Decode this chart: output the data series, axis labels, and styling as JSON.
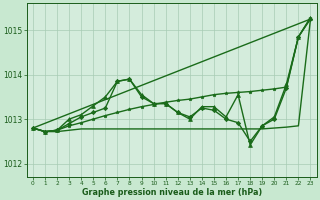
{
  "xlabel": "Graphe pression niveau de la mer (hPa)",
  "bg_color": "#c8e8d0",
  "plot_bg_color": "#d4ecdc",
  "grid_color": "#a8ccb4",
  "text_color": "#1a5c1a",
  "line_color": "#1a6b1a",
  "xlim": [
    -0.5,
    23.5
  ],
  "ylim": [
    1011.7,
    1015.6
  ],
  "yticks": [
    1012,
    1013,
    1014,
    1015
  ],
  "xticks": [
    0,
    1,
    2,
    3,
    4,
    5,
    6,
    7,
    8,
    9,
    10,
    11,
    12,
    13,
    14,
    15,
    16,
    17,
    18,
    19,
    20,
    21,
    22,
    23
  ],
  "series": [
    {
      "x": [
        0,
        23
      ],
      "y": [
        1012.8,
        1015.25
      ],
      "marker": null,
      "markersize": 0,
      "linewidth": 1.0,
      "linestyle": "-"
    },
    {
      "x": [
        0,
        1,
        2,
        3,
        4,
        5,
        6,
        7,
        8,
        9,
        10,
        11,
        12,
        13,
        14,
        15,
        16,
        17,
        18,
        19,
        20,
        21,
        22,
        23
      ],
      "y": [
        1012.8,
        1012.72,
        1012.75,
        1012.9,
        1013.05,
        1013.15,
        1013.25,
        1013.85,
        1013.9,
        1013.5,
        1013.35,
        1013.35,
        1013.15,
        1013.05,
        1013.25,
        1013.2,
        1013.0,
        1012.92,
        1012.5,
        1012.85,
        1013.0,
        1013.7,
        1014.85,
        1015.25
      ],
      "marker": "D",
      "markersize": 2.2,
      "linewidth": 1.0,
      "linestyle": "-"
    },
    {
      "x": [
        0,
        1,
        2,
        3,
        4,
        5,
        6,
        7,
        8,
        9,
        10,
        11,
        12,
        13,
        14,
        15,
        16,
        17,
        18,
        19,
        20,
        21,
        22,
        23
      ],
      "y": [
        1012.8,
        1012.72,
        1012.72,
        1012.75,
        1012.78,
        1012.78,
        1012.78,
        1012.78,
        1012.78,
        1012.78,
        1012.78,
        1012.78,
        1012.78,
        1012.78,
        1012.78,
        1012.78,
        1012.78,
        1012.78,
        1012.78,
        1012.78,
        1012.8,
        1012.82,
        1012.85,
        1015.25
      ],
      "marker": null,
      "markersize": 0,
      "linewidth": 1.0,
      "linestyle": "-"
    },
    {
      "x": [
        0,
        1,
        2,
        3,
        4,
        5,
        6,
        7,
        8,
        9,
        10,
        11,
        12,
        13,
        14,
        15,
        16,
        17,
        18,
        19,
        20,
        21,
        22,
        23
      ],
      "y": [
        1012.8,
        1012.72,
        1012.75,
        1013.0,
        1013.1,
        1013.3,
        1013.5,
        1013.85,
        1013.9,
        1013.55,
        1013.35,
        1013.35,
        1013.15,
        1013.0,
        1013.28,
        1013.28,
        1013.05,
        1013.55,
        1012.42,
        1012.85,
        1013.05,
        1013.78,
        1014.85,
        1015.28
      ],
      "marker": "^",
      "markersize": 2.8,
      "linewidth": 1.0,
      "linestyle": "-"
    },
    {
      "x": [
        0,
        1,
        2,
        3,
        4,
        5,
        6,
        7,
        8,
        9,
        10,
        11,
        12,
        13,
        14,
        15,
        16,
        17,
        18,
        19,
        20,
        21,
        22,
        23
      ],
      "y": [
        1012.8,
        1012.72,
        1012.75,
        1012.85,
        1012.92,
        1013.0,
        1013.08,
        1013.15,
        1013.22,
        1013.28,
        1013.33,
        1013.38,
        1013.42,
        1013.45,
        1013.5,
        1013.55,
        1013.58,
        1013.6,
        1013.62,
        1013.65,
        1013.68,
        1013.72,
        1014.85,
        1015.28
      ],
      "marker": "*",
      "markersize": 2.5,
      "linewidth": 1.0,
      "linestyle": "-"
    }
  ]
}
